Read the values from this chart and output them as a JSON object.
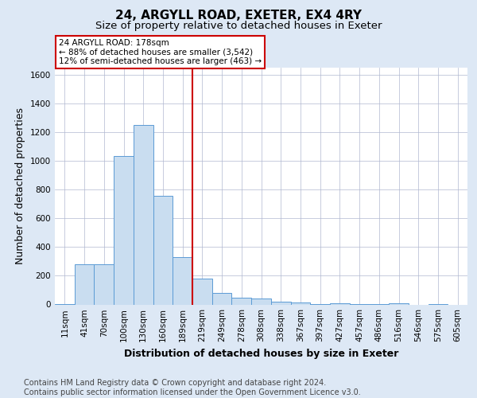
{
  "title_line1": "24, ARGYLL ROAD, EXETER, EX4 4RY",
  "title_line2": "Size of property relative to detached houses in Exeter",
  "xlabel": "Distribution of detached houses by size in Exeter",
  "ylabel": "Number of detached properties",
  "bins": [
    "11sqm",
    "41sqm",
    "70sqm",
    "100sqm",
    "130sqm",
    "160sqm",
    "189sqm",
    "219sqm",
    "249sqm",
    "278sqm",
    "308sqm",
    "338sqm",
    "367sqm",
    "397sqm",
    "427sqm",
    "457sqm",
    "486sqm",
    "516sqm",
    "546sqm",
    "575sqm",
    "605sqm"
  ],
  "values": [
    5,
    280,
    280,
    1035,
    1250,
    755,
    330,
    178,
    80,
    48,
    40,
    20,
    15,
    5,
    10,
    5,
    2,
    10,
    0,
    5,
    0
  ],
  "bar_color": "#c9ddf0",
  "bar_edge_color": "#5b9bd5",
  "red_line_x": 6.5,
  "red_line_color": "#cc0000",
  "annotation_text": "24 ARGYLL ROAD: 178sqm\n← 88% of detached houses are smaller (3,542)\n12% of semi-detached houses are larger (463) →",
  "annotation_box_color": "#ffffff",
  "annotation_box_edge": "#cc0000",
  "ylim": [
    0,
    1650
  ],
  "yticks": [
    0,
    200,
    400,
    600,
    800,
    1000,
    1200,
    1400,
    1600
  ],
  "footnote": "Contains HM Land Registry data © Crown copyright and database right 2024.\nContains public sector information licensed under the Open Government Licence v3.0.",
  "background_color": "#dde8f5",
  "plot_background": "#ffffff",
  "grid_color": "#b0b8d0",
  "title_fontsize": 11,
  "subtitle_fontsize": 9.5,
  "axis_label_fontsize": 9,
  "tick_fontsize": 7.5,
  "footnote_fontsize": 7
}
